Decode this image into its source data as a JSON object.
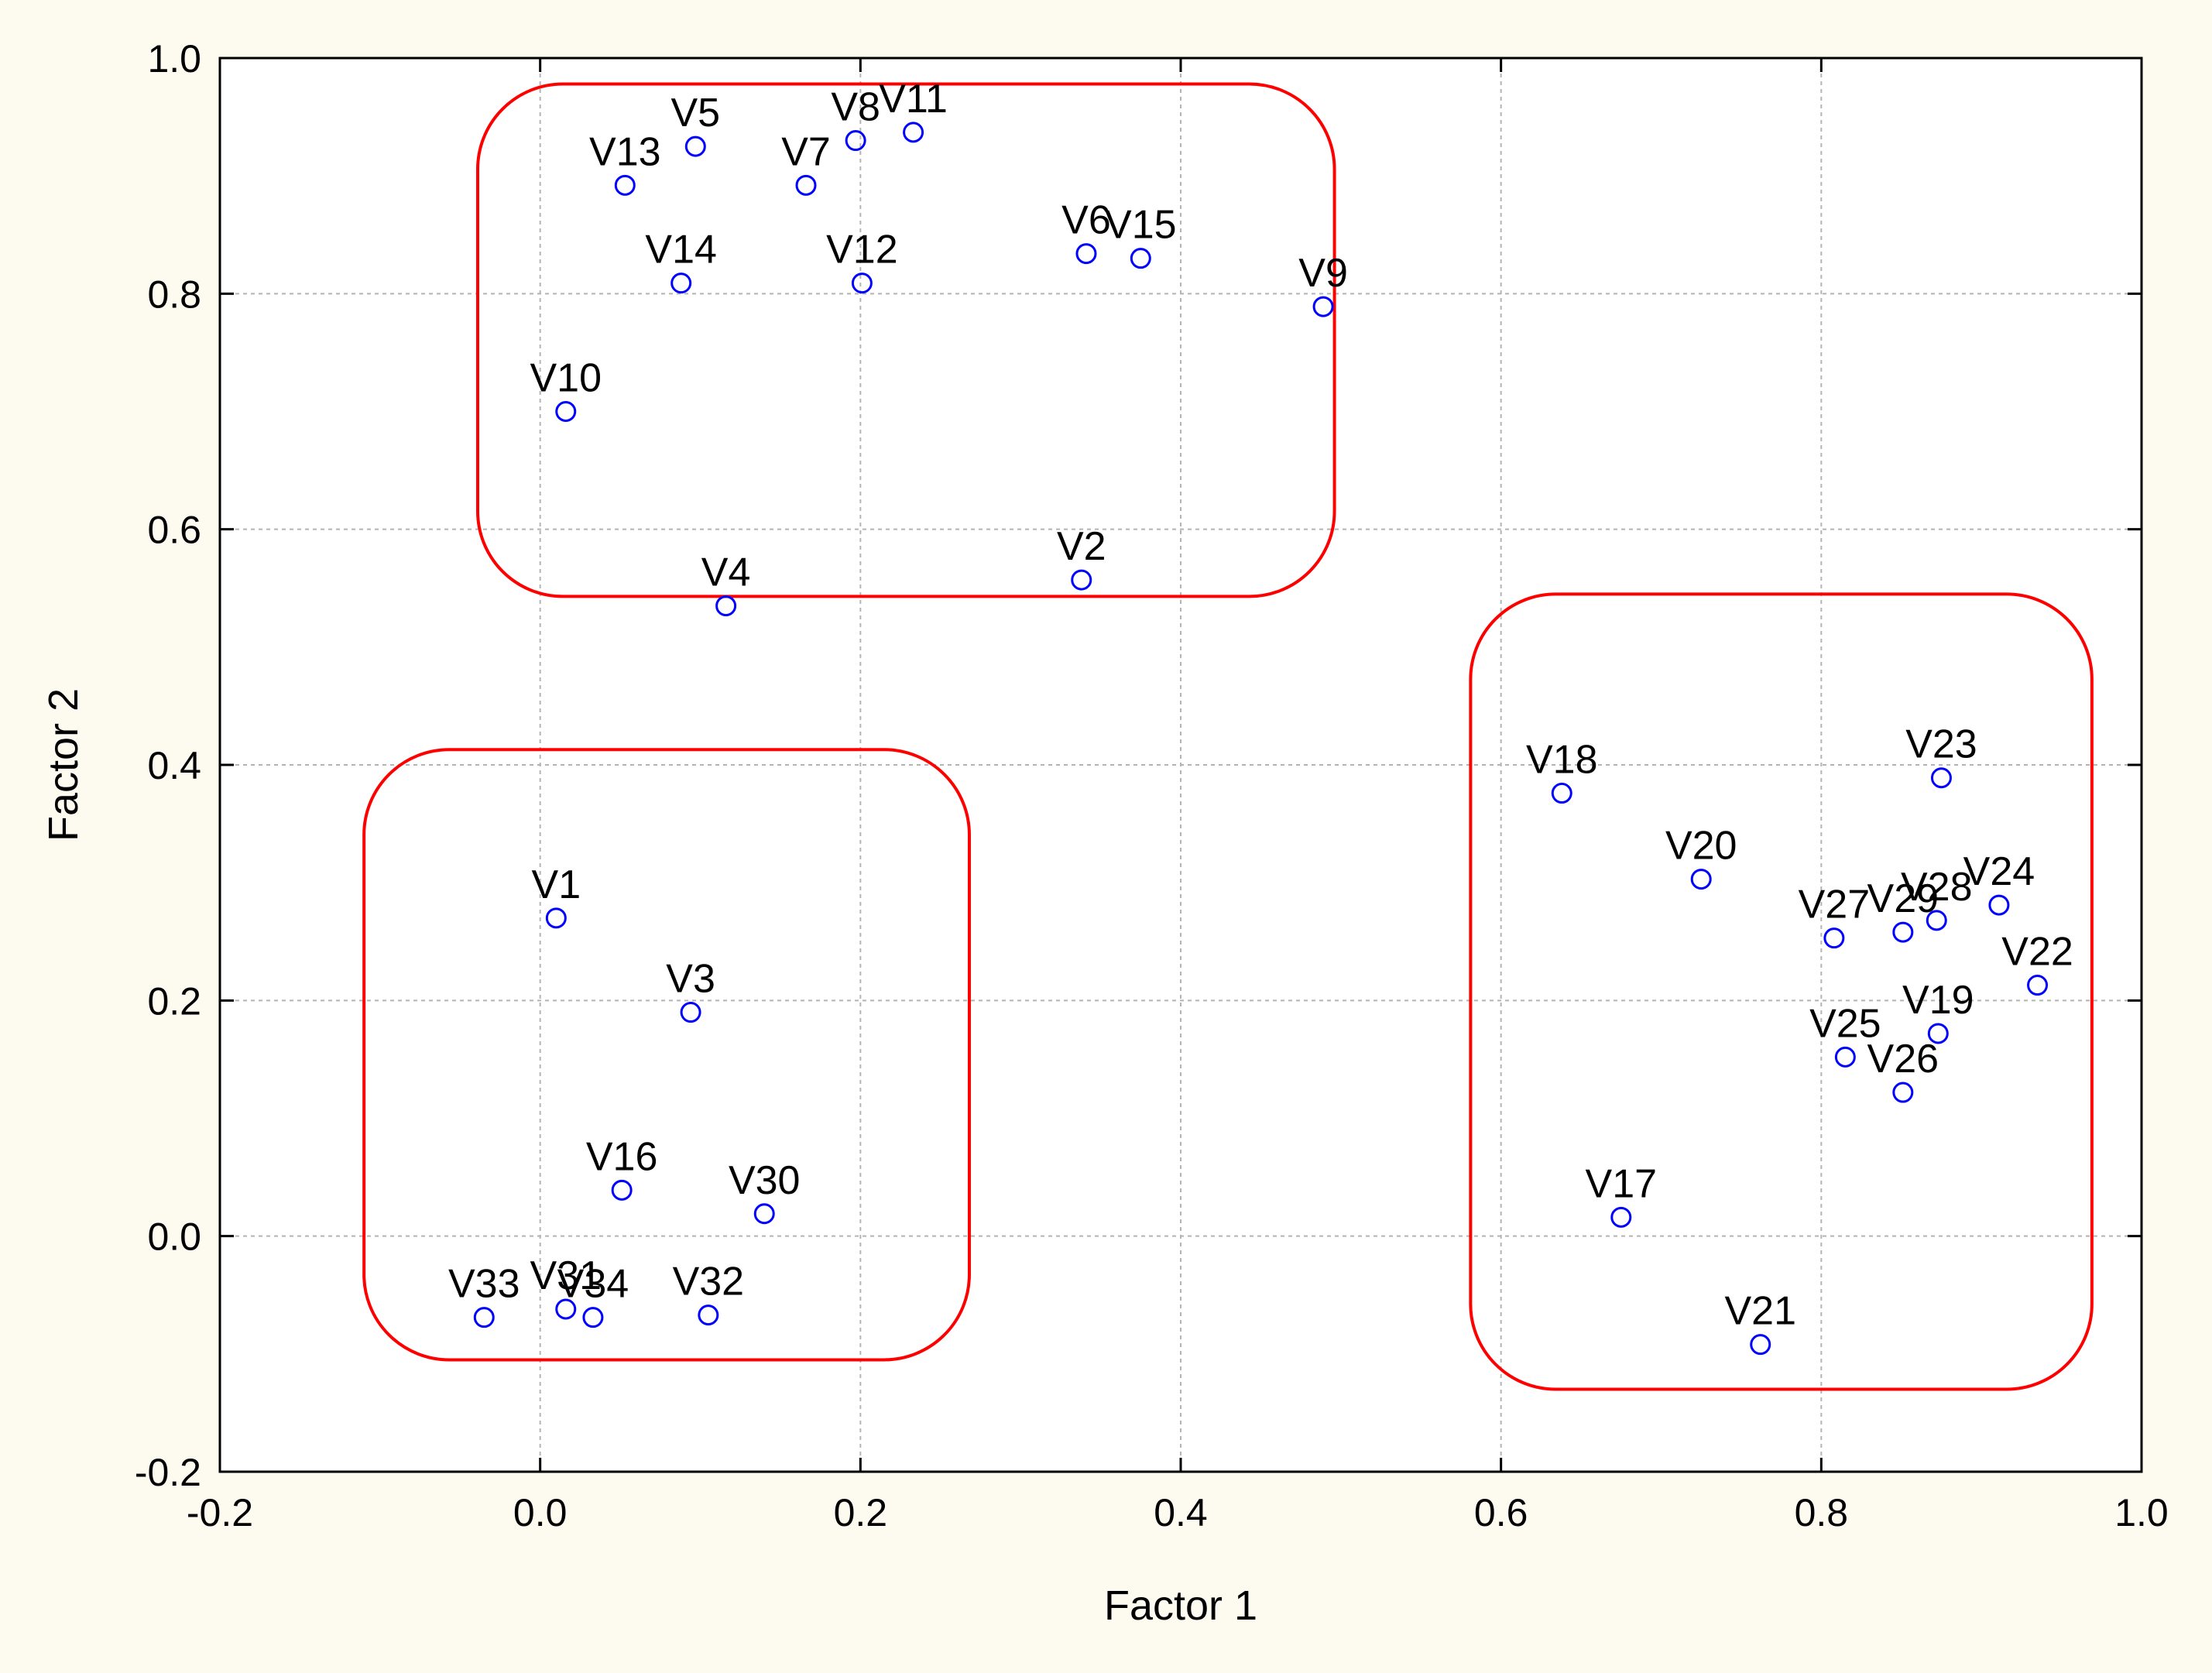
{
  "chart_data": {
    "type": "scatter",
    "title": "",
    "xlabel": "Factor 1",
    "ylabel": "Factor 2",
    "xlim": [
      -0.2,
      1.0
    ],
    "ylim": [
      -0.2,
      1.0
    ],
    "xticks": [
      -0.2,
      0.0,
      0.2,
      0.4,
      0.6,
      0.8,
      1.0
    ],
    "yticks": [
      -0.2,
      0.0,
      0.2,
      0.4,
      0.6,
      0.8,
      1.0
    ],
    "xtick_labels": [
      "-0.2",
      "0.0",
      "0.2",
      "0.4",
      "0.6",
      "0.8",
      "1.0"
    ],
    "ytick_labels": [
      "-0.2",
      "0.0",
      "0.2",
      "0.4",
      "0.6",
      "0.8",
      "1.0"
    ],
    "grid": true,
    "marker": "open-circle",
    "marker_color": "#0000ff",
    "cluster_color": "#ff0000",
    "points": [
      {
        "label": "V1",
        "x": 0.01,
        "y": 0.27
      },
      {
        "label": "V2",
        "x": 0.338,
        "y": 0.557
      },
      {
        "label": "V3",
        "x": 0.094,
        "y": 0.19
      },
      {
        "label": "V4",
        "x": 0.116,
        "y": 0.535
      },
      {
        "label": "V5",
        "x": 0.097,
        "y": 0.925
      },
      {
        "label": "V6",
        "x": 0.341,
        "y": 0.834
      },
      {
        "label": "V7",
        "x": 0.166,
        "y": 0.892
      },
      {
        "label": "V8",
        "x": 0.197,
        "y": 0.93
      },
      {
        "label": "V9",
        "x": 0.489,
        "y": 0.789
      },
      {
        "label": "V10",
        "x": 0.016,
        "y": 0.7
      },
      {
        "label": "V11",
        "x": 0.233,
        "y": 0.937
      },
      {
        "label": "V12",
        "x": 0.201,
        "y": 0.809
      },
      {
        "label": "V13",
        "x": 0.053,
        "y": 0.892
      },
      {
        "label": "V14",
        "x": 0.088,
        "y": 0.809
      },
      {
        "label": "V15",
        "x": 0.375,
        "y": 0.83
      },
      {
        "label": "V16",
        "x": 0.051,
        "y": 0.039
      },
      {
        "label": "V17",
        "x": 0.675,
        "y": 0.016
      },
      {
        "label": "V18",
        "x": 0.638,
        "y": 0.376
      },
      {
        "label": "V19",
        "x": 0.873,
        "y": 0.172
      },
      {
        "label": "V20",
        "x": 0.725,
        "y": 0.303
      },
      {
        "label": "V21",
        "x": 0.762,
        "y": -0.092
      },
      {
        "label": "V22",
        "x": 0.935,
        "y": 0.213
      },
      {
        "label": "V23",
        "x": 0.875,
        "y": 0.389
      },
      {
        "label": "V24",
        "x": 0.911,
        "y": 0.281
      },
      {
        "label": "V25",
        "x": 0.815,
        "y": 0.152
      },
      {
        "label": "V26",
        "x": 0.851,
        "y": 0.122
      },
      {
        "label": "V27",
        "x": 0.808,
        "y": 0.253
      },
      {
        "label": "V28",
        "x": 0.872,
        "y": 0.268
      },
      {
        "label": "V29",
        "x": 0.851,
        "y": 0.258
      },
      {
        "label": "V30",
        "x": 0.14,
        "y": 0.019
      },
      {
        "label": "V31",
        "x": 0.016,
        "y": -0.062
      },
      {
        "label": "V32",
        "x": 0.105,
        "y": -0.067
      },
      {
        "label": "V33",
        "x": -0.035,
        "y": -0.069
      },
      {
        "label": "V34",
        "x": 0.033,
        "y": -0.069
      }
    ],
    "clusters": [
      {
        "x": [
          -0.039,
          0.496
        ],
        "y": [
          0.543,
          0.978
        ]
      },
      {
        "x": [
          -0.11,
          0.268
        ],
        "y": [
          -0.105,
          0.413
        ]
      },
      {
        "x": [
          0.581,
          0.969
        ],
        "y": [
          -0.13,
          0.545
        ]
      }
    ]
  }
}
